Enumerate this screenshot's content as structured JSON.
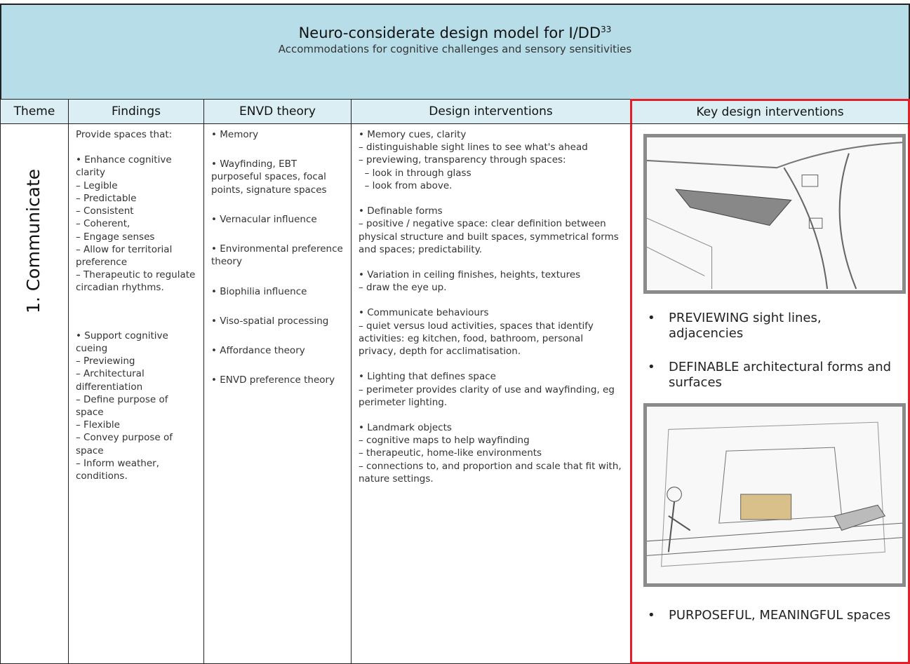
{
  "header": {
    "title": "Neuro-considerate design model for I/DD",
    "title_sup": "33",
    "subtitle": "Accommodations for cognitive challenges and sensory sensitivities"
  },
  "table": {
    "columns": [
      "Theme",
      "Findings",
      "ENVD theory",
      "Design interventions",
      "Key design interventions"
    ],
    "theme": "1. Communicate",
    "findings": [
      [
        "Provide spaces that:"
      ],
      [
        "• Enhance cognitive clarity",
        "– Legible",
        "– Predictable",
        "– Consistent",
        "– Coherent,",
        "– Engage senses",
        "– Allow for territorial preference",
        "– Therapeutic to regulate circadian rhythms."
      ],
      [
        "• Support cognitive cueing",
        "– Previewing",
        "– Architectural differentiation",
        "– Define purpose of space",
        "– Flexible",
        "– Convey purpose of space",
        "– Inform weather, conditions."
      ]
    ],
    "envd": [
      "• Memory",
      "• Wayfinding, EBT purposeful spaces, focal points, signature spaces",
      "• Vernacular influence",
      "• Environmental preference theory",
      "• Biophilia influence",
      "• Viso-spatial processing",
      "• Affordance theory",
      "• ENVD preference theory"
    ],
    "design": [
      [
        "• Memory cues, clarity",
        "– distinguishable sight lines to see what's ahead",
        "– previewing, transparency through spaces:",
        "  – look in through glass",
        "  – look from above."
      ],
      [
        "• Definable forms",
        "– positive / negative space: clear definition between physical structure and built spaces, symmetrical forms and spaces; predictability."
      ],
      [
        "• Variation in ceiling finishes, heights, textures",
        "– draw the eye up."
      ],
      [
        "• Communicate behaviours",
        "– quiet versus loud activities, spaces that identify activities: eg kitchen, food, bathroom, personal privacy, depth for acclimatisation."
      ],
      [
        "• Lighting that defines space",
        "– perimeter provides clarity of use and wayfinding, eg perimeter lighting."
      ],
      [
        "• Landmark objects",
        "– cognitive maps to help wayfinding",
        "– therapeutic, home-like environments",
        "– connections to, and proportion and scale that fit with, nature settings."
      ]
    ],
    "key_bullets": [
      "PREVIEWING sight lines, adjacencies",
      "DEFINABLE architectural forms and surfaces",
      "PURPOSEFUL, MEANINGFUL spaces"
    ]
  }
}
